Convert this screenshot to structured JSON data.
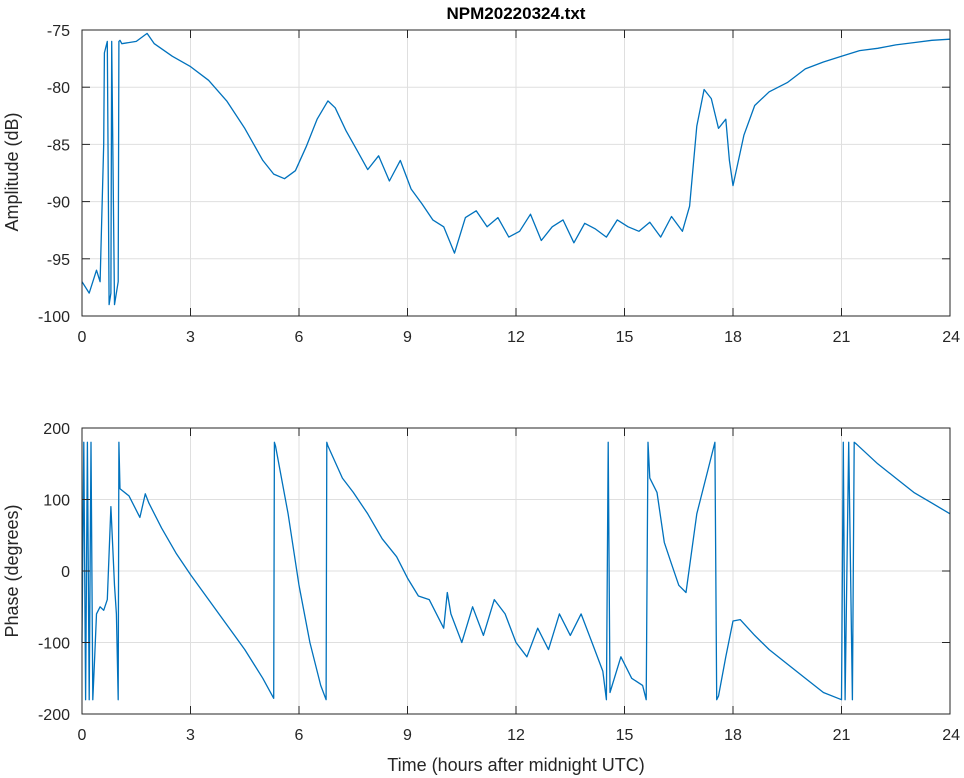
{
  "colors": {
    "series": "#0072bd",
    "axes": "#262626",
    "grid": "#dfdfdf"
  },
  "chart_data": [
    {
      "type": "line",
      "title": "NPM20220324.txt",
      "xlabel": "",
      "ylabel": "Amplitude (dB)",
      "xlim": [
        0,
        24
      ],
      "ylim": [
        -100,
        -75
      ],
      "xticks": [
        0,
        3,
        6,
        9,
        12,
        15,
        18,
        21,
        24
      ],
      "xtick_labels": [
        "0",
        "3",
        "6",
        "9",
        "12",
        "15",
        "18",
        "21",
        "24"
      ],
      "yticks": [
        -100,
        -95,
        -90,
        -85,
        -80,
        -75
      ],
      "ytick_labels": [
        "-100",
        "-95",
        "-90",
        "-85",
        "-80",
        "-75"
      ],
      "grid": true,
      "series": [
        {
          "x": [
            0,
            0.2,
            0.4,
            0.5,
            0.6,
            0.62,
            0.7,
            0.75,
            0.8,
            0.82,
            0.9,
            1.0,
            1.02,
            1.05,
            1.1,
            1.5,
            1.8,
            2.0,
            2.5,
            3.0,
            3.5,
            4.0,
            4.5,
            5.0,
            5.3,
            5.6,
            5.9,
            6.2,
            6.5,
            6.8,
            7.0,
            7.3,
            7.6,
            7.9,
            8.2,
            8.5,
            8.8,
            9.1,
            9.4,
            9.7,
            10.0,
            10.3,
            10.6,
            10.9,
            11.2,
            11.5,
            11.8,
            12.1,
            12.4,
            12.7,
            13.0,
            13.3,
            13.6,
            13.9,
            14.2,
            14.5,
            14.8,
            15.1,
            15.4,
            15.7,
            16.0,
            16.3,
            16.6,
            16.8,
            17.0,
            17.2,
            17.4,
            17.6,
            17.8,
            17.9,
            18.0,
            18.3,
            18.6,
            19.0,
            19.5,
            20.0,
            20.5,
            21.0,
            21.5,
            22.0,
            22.5,
            23.0,
            23.5,
            24.0
          ],
          "values": [
            -97,
            -98,
            -96,
            -97,
            -85,
            -77,
            -76,
            -99,
            -98,
            -76,
            -99,
            -97,
            -76,
            -75.9,
            -76.2,
            -76,
            -75.3,
            -76.2,
            -77.3,
            -78.2,
            -79.4,
            -81.2,
            -83.6,
            -86.4,
            -87.6,
            -88.0,
            -87.3,
            -85.2,
            -82.8,
            -81.2,
            -81.8,
            -83.8,
            -85.5,
            -87.2,
            -86.0,
            -88.2,
            -86.4,
            -88.9,
            -90.2,
            -91.6,
            -92.2,
            -94.5,
            -91.4,
            -90.8,
            -92.2,
            -91.4,
            -93.1,
            -92.6,
            -91.1,
            -93.4,
            -92.2,
            -91.6,
            -93.6,
            -91.9,
            -92.4,
            -93.1,
            -91.6,
            -92.2,
            -92.6,
            -91.8,
            -93.1,
            -91.3,
            -92.6,
            -90.4,
            -83.4,
            -80.2,
            -81.0,
            -83.6,
            -82.8,
            -86.4,
            -88.6,
            -84.2,
            -81.6,
            -80.4,
            -79.6,
            -78.4,
            -77.8,
            -77.3,
            -76.8,
            -76.6,
            -76.3,
            -76.1,
            -75.9,
            -75.8
          ]
        }
      ]
    },
    {
      "type": "line",
      "title": "",
      "xlabel": "Time (hours after midnight UTC)",
      "ylabel": "Phase (degrees)",
      "xlim": [
        0,
        24
      ],
      "ylim": [
        -200,
        200
      ],
      "xticks": [
        0,
        3,
        6,
        9,
        12,
        15,
        18,
        21,
        24
      ],
      "xtick_labels": [
        "0",
        "3",
        "6",
        "9",
        "12",
        "15",
        "18",
        "21",
        "24"
      ],
      "yticks": [
        -200,
        -100,
        0,
        100,
        200
      ],
      "ytick_labels": [
        "-200",
        "-100",
        "0",
        "100",
        "200"
      ],
      "grid": true,
      "series": [
        {
          "x": [
            0,
            0.05,
            0.1,
            0.15,
            0.2,
            0.25,
            0.3,
            0.35,
            0.4,
            0.5,
            0.6,
            0.7,
            0.8,
            0.9,
            0.95,
            1.0,
            1.02,
            1.05,
            1.3,
            1.6,
            1.75,
            1.85,
            2.2,
            2.6,
            3.0,
            3.5,
            4.0,
            4.5,
            5.0,
            5.3,
            5.32,
            5.35,
            5.7,
            6.0,
            6.3,
            6.6,
            6.75,
            6.77,
            6.8,
            7.2,
            7.5,
            7.9,
            8.3,
            8.7,
            9.0,
            9.3,
            9.6,
            10.0,
            10.1,
            10.2,
            10.5,
            10.8,
            11.1,
            11.4,
            11.7,
            12.0,
            12.3,
            12.6,
            12.9,
            13.2,
            13.5,
            13.8,
            14.1,
            14.4,
            14.5,
            14.55,
            14.6,
            14.9,
            15.2,
            15.5,
            15.6,
            15.65,
            15.7,
            15.9,
            16.1,
            16.3,
            16.5,
            16.7,
            17.0,
            17.3,
            17.5,
            17.55,
            17.6,
            17.8,
            18.0,
            18.2,
            18.6,
            19.0,
            19.5,
            20.0,
            20.5,
            21.0,
            21.05,
            21.1,
            21.2,
            21.3,
            21.35,
            21.4,
            22.0,
            22.5,
            23.0,
            23.5,
            24.0
          ],
          "values": [
            -100,
            180,
            -180,
            180,
            -180,
            180,
            -180,
            -120,
            -60,
            -50,
            -55,
            -40,
            90,
            -20,
            -60,
            -180,
            180,
            115,
            105,
            75,
            108,
            95,
            60,
            25,
            -5,
            -40,
            -75,
            -110,
            -150,
            -178,
            180,
            175,
            80,
            -20,
            -100,
            -160,
            -180,
            180,
            175,
            130,
            110,
            80,
            45,
            20,
            -10,
            -35,
            -40,
            -80,
            -30,
            -60,
            -100,
            -50,
            -90,
            -40,
            -60,
            -100,
            -120,
            -80,
            -110,
            -60,
            -90,
            -60,
            -100,
            -140,
            -180,
            180,
            -170,
            -120,
            -150,
            -160,
            -180,
            180,
            130,
            110,
            40,
            10,
            -20,
            -30,
            80,
            140,
            180,
            -180,
            -175,
            -120,
            -70,
            -68,
            -90,
            -110,
            -130,
            -150,
            -170,
            -180,
            180,
            -180,
            180,
            -180,
            180,
            178,
            150,
            130,
            110,
            95,
            80
          ]
        }
      ]
    }
  ]
}
